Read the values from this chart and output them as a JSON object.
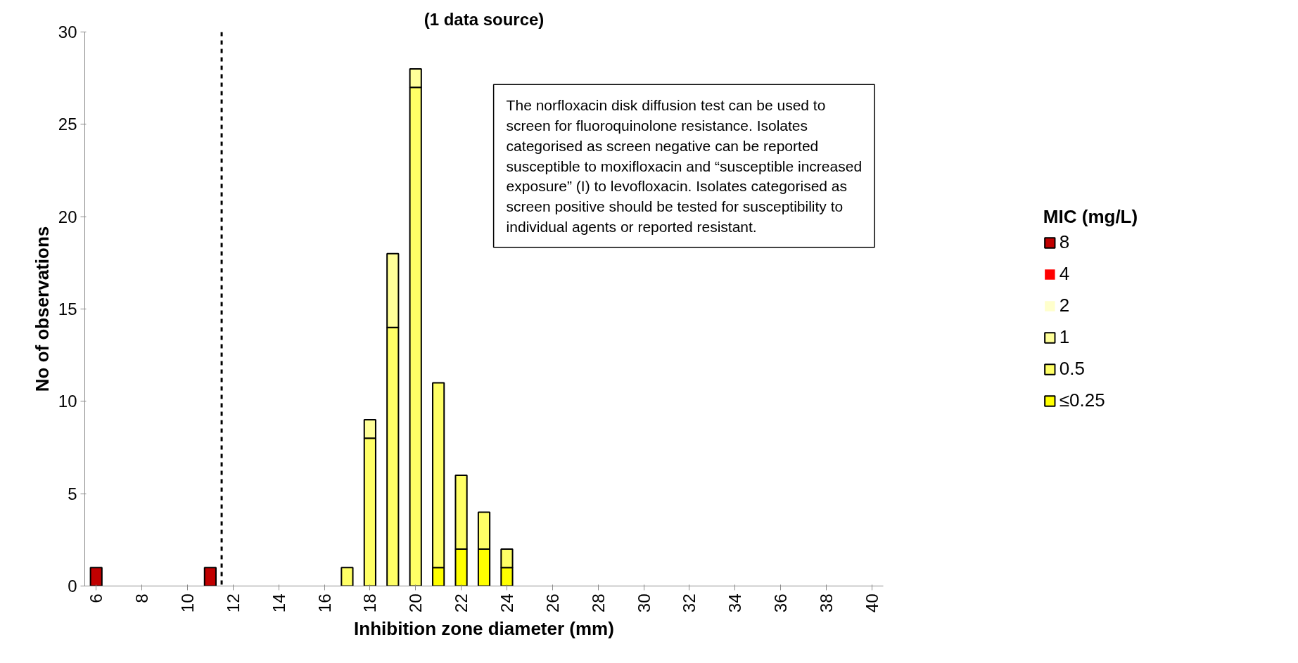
{
  "chart_data": {
    "type": "bar",
    "stacked": true,
    "title": "(1 data source)",
    "xlabel": "Inhibition zone diameter (mm)",
    "ylabel": "No of observations",
    "legend_title": "MIC (mg/L)",
    "x": [
      6,
      7,
      8,
      9,
      10,
      11,
      12,
      13,
      14,
      15,
      16,
      17,
      18,
      19,
      20,
      21,
      22,
      23,
      24,
      25,
      26,
      27,
      28,
      29,
      30,
      31,
      32,
      33,
      34,
      35,
      36,
      37,
      38,
      39,
      40
    ],
    "xlim": [
      5.5,
      40.5
    ],
    "xticks": [
      6,
      8,
      10,
      12,
      14,
      16,
      18,
      20,
      22,
      24,
      26,
      28,
      30,
      32,
      34,
      36,
      38,
      40
    ],
    "ylim": [
      0,
      30
    ],
    "yticks": [
      0,
      5,
      10,
      15,
      20,
      25,
      30
    ],
    "grid": false,
    "legend": "right",
    "series": [
      {
        "name": "≤0.25",
        "color": "#ffff00",
        "values": [
          0,
          0,
          0,
          0,
          0,
          0,
          0,
          0,
          0,
          0,
          0,
          0,
          0,
          0,
          0,
          1,
          2,
          2,
          1,
          0,
          0,
          0,
          0,
          0,
          0,
          0,
          0,
          0,
          0,
          0,
          0,
          0,
          0,
          0,
          0
        ]
      },
      {
        "name": "0.5",
        "color": "#ffff66",
        "values": [
          0,
          0,
          0,
          0,
          0,
          0,
          0,
          0,
          0,
          0,
          0,
          1,
          8,
          14,
          27,
          10,
          4,
          2,
          1,
          0,
          0,
          0,
          0,
          0,
          0,
          0,
          0,
          0,
          0,
          0,
          0,
          0,
          0,
          0,
          0
        ]
      },
      {
        "name": "1",
        "color": "#ffff99",
        "values": [
          0,
          0,
          0,
          0,
          0,
          0,
          0,
          0,
          0,
          0,
          0,
          0,
          1,
          4,
          1,
          0,
          0,
          0,
          0,
          0,
          0,
          0,
          0,
          0,
          0,
          0,
          0,
          0,
          0,
          0,
          0,
          0,
          0,
          0,
          0
        ]
      },
      {
        "name": "2",
        "color": "#ffffcc",
        "values": [
          0,
          0,
          0,
          0,
          0,
          0,
          0,
          0,
          0,
          0,
          0,
          0,
          0,
          0,
          0,
          0,
          0,
          0,
          0,
          0,
          0,
          0,
          0,
          0,
          0,
          0,
          0,
          0,
          0,
          0,
          0,
          0,
          0,
          0,
          0
        ]
      },
      {
        "name": "4",
        "color": "#ff0000",
        "values": [
          0,
          0,
          0,
          0,
          0,
          0,
          0,
          0,
          0,
          0,
          0,
          0,
          0,
          0,
          0,
          0,
          0,
          0,
          0,
          0,
          0,
          0,
          0,
          0,
          0,
          0,
          0,
          0,
          0,
          0,
          0,
          0,
          0,
          0,
          0
        ]
      },
      {
        "name": "8",
        "color": "#c00000",
        "values": [
          1,
          0,
          0,
          0,
          0,
          1,
          0,
          0,
          0,
          0,
          0,
          0,
          0,
          0,
          0,
          0,
          0,
          0,
          0,
          0,
          0,
          0,
          0,
          0,
          0,
          0,
          0,
          0,
          0,
          0,
          0,
          0,
          0,
          0,
          0
        ]
      }
    ],
    "ref_lines": [
      {
        "axis": "x",
        "value": 11.5,
        "label": null,
        "color": "#000000",
        "line_style": "dashed"
      }
    ],
    "annotations": [
      "The norfloxacin disk diffusion test can be used to screen for fluoroquinolone resistance. Isolates categorised as screen negative can be reported susceptible to moxifloxacin and “susceptible increased exposure” (I) to levofloxacin. Isolates categorised as screen positive should be tested for susceptibility to individual agents or reported resistant."
    ]
  }
}
